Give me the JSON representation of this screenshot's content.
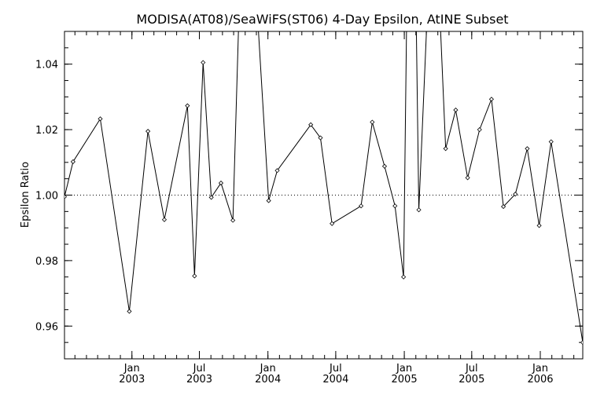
{
  "chart_data": {
    "type": "line",
    "title": "MODISA(AT08)/SeaWiFS(ST06) 4-Day Epsilon, AtINE Subset",
    "xlabel": "",
    "ylabel": "Epsilon Ratio",
    "xlim": [
      "2002-07-04",
      "2006-04-25"
    ],
    "ylim": [
      0.95,
      1.05
    ],
    "grid": false,
    "legend": "none",
    "reference_line": {
      "y": 1.0,
      "style": "dotted"
    },
    "y_ticks": [
      "0.96",
      "0.98",
      "1.00",
      "1.02",
      "1.04"
    ],
    "x_ticks": [
      {
        "month": "Jan",
        "year": "2003"
      },
      {
        "month": "Jul",
        "year": "2003"
      },
      {
        "month": "Jan",
        "year": "2004"
      },
      {
        "month": "Jul",
        "year": "2004"
      },
      {
        "month": "Jan",
        "year": "2005"
      },
      {
        "month": "Jul",
        "year": "2005"
      },
      {
        "month": "Jan",
        "year": "2006"
      }
    ],
    "x_tick_dates": [
      "2003-01-01",
      "2003-07-01",
      "2004-01-01",
      "2004-07-01",
      "2005-01-01",
      "2005-07-01",
      "2006-01-01"
    ],
    "series": [
      {
        "marker": "diamond",
        "points": [
          {
            "x": "2002-07-04",
            "y": 0.9995
          },
          {
            "x": "2002-07-27",
            "y": 1.0102
          },
          {
            "x": "2002-10-08",
            "y": 1.0233
          },
          {
            "x": "2002-12-25",
            "y": 0.9645
          },
          {
            "x": "2003-02-13",
            "y": 1.0195
          },
          {
            "x": "2003-03-29",
            "y": 0.9925
          },
          {
            "x": "2003-05-30",
            "y": 1.0273
          },
          {
            "x": "2003-06-18",
            "y": 0.9753
          },
          {
            "x": "2003-07-11",
            "y": 1.0405
          },
          {
            "x": "2003-08-02",
            "y": 0.9993
          },
          {
            "x": "2003-08-28",
            "y": 1.0037
          },
          {
            "x": "2003-09-29",
            "y": 0.9923
          },
          {
            "x": "2003-10-19",
            "y": 1.07
          },
          {
            "x": "2003-11-26",
            "y": 1.07
          },
          {
            "x": "2004-01-03",
            "y": 0.9983
          },
          {
            "x": "2004-01-26",
            "y": 1.0075
          },
          {
            "x": "2004-04-25",
            "y": 1.0215
          },
          {
            "x": "2004-05-21",
            "y": 1.0175
          },
          {
            "x": "2004-06-21",
            "y": 0.9913
          },
          {
            "x": "2004-09-07",
            "y": 0.9967
          },
          {
            "x": "2004-10-07",
            "y": 1.0223
          },
          {
            "x": "2004-11-09",
            "y": 1.0088
          },
          {
            "x": "2004-12-07",
            "y": 0.9967
          },
          {
            "x": "2004-12-30",
            "y": 0.975
          },
          {
            "x": "2005-01-09",
            "y": 1.07
          },
          {
            "x": "2005-01-31",
            "y": 1.07
          },
          {
            "x": "2005-02-09",
            "y": 0.9955
          },
          {
            "x": "2005-03-09",
            "y": 1.07
          },
          {
            "x": "2005-04-01",
            "y": 1.07
          },
          {
            "x": "2005-04-22",
            "y": 1.0142
          },
          {
            "x": "2005-05-19",
            "y": 1.026
          },
          {
            "x": "2005-06-20",
            "y": 1.0053
          },
          {
            "x": "2005-07-22",
            "y": 1.02
          },
          {
            "x": "2005-08-23",
            "y": 1.0293
          },
          {
            "x": "2005-09-24",
            "y": 0.9965
          },
          {
            "x": "2005-10-26",
            "y": 1.0003
          },
          {
            "x": "2005-11-27",
            "y": 1.0142
          },
          {
            "x": "2005-12-29",
            "y": 0.9907
          },
          {
            "x": "2006-01-30",
            "y": 1.0163
          },
          {
            "x": "2006-04-25",
            "y": 0.955
          }
        ]
      }
    ]
  }
}
